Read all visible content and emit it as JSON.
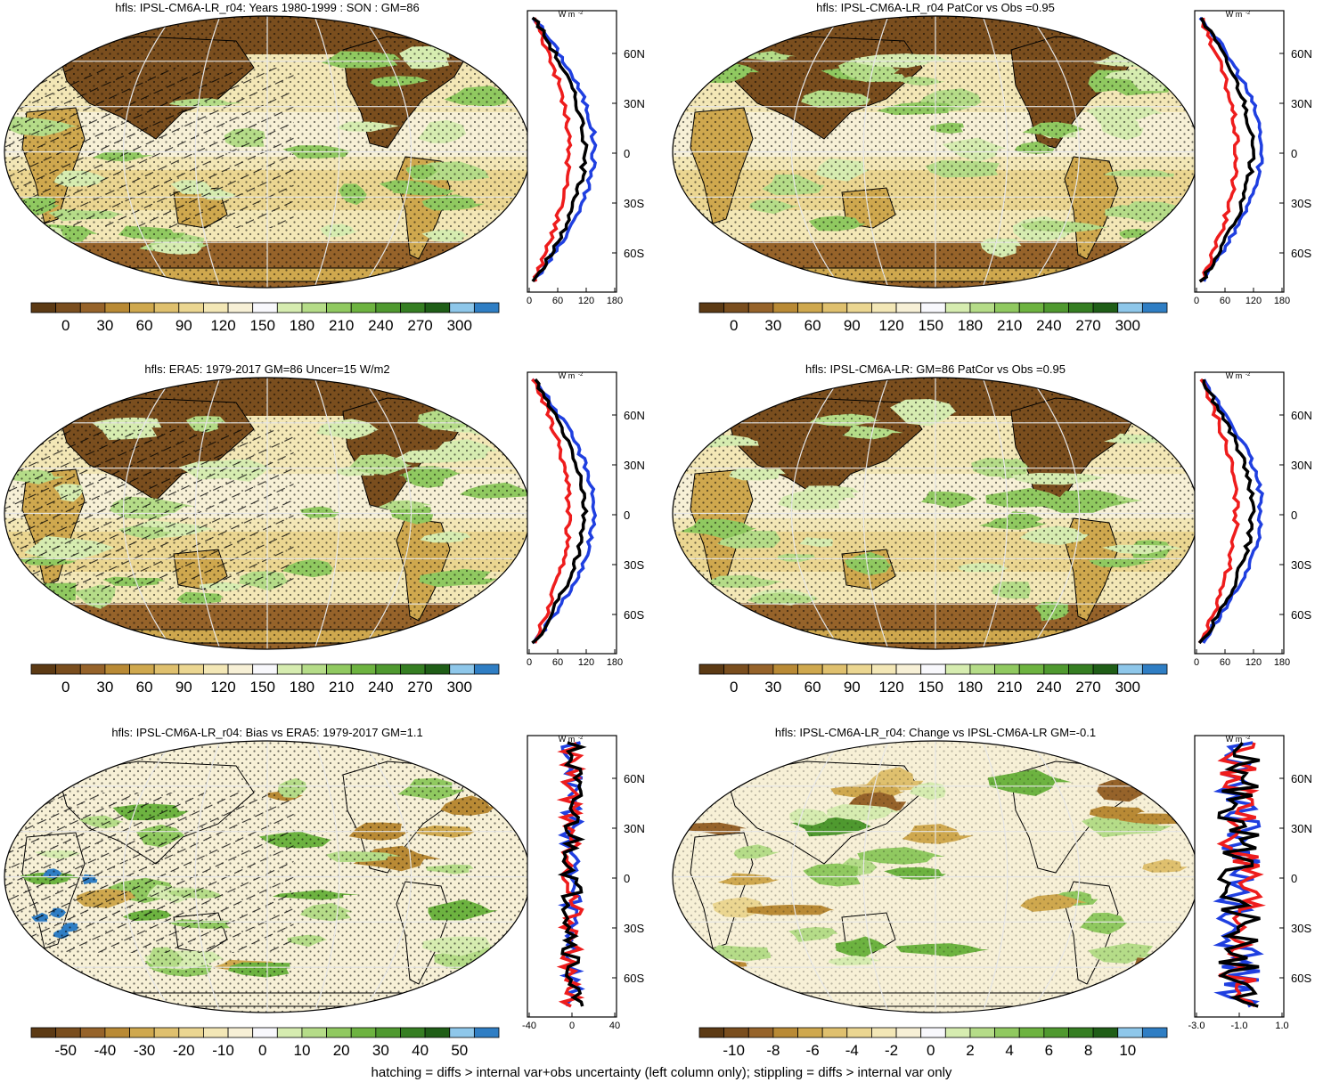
{
  "colors": {
    "land_dry": "#7a4a1c",
    "palette_abs": [
      "#5c3a14",
      "#7a4e1e",
      "#96632a",
      "#b98a35",
      "#cfa84e",
      "#dfc06e",
      "#ebd691",
      "#f3e7b6",
      "#f7f0d6",
      "#f8f8fc",
      "#d6ecb0",
      "#b5dc88",
      "#90c960",
      "#6db340",
      "#4f992f",
      "#357e22",
      "#1f5e17",
      "#8ec7ea",
      "#2f7ec4"
    ],
    "palette_diff": [
      "#5c3a14",
      "#7a4e1e",
      "#96632a",
      "#b98a35",
      "#cfa84e",
      "#dfc06e",
      "#ebd691",
      "#f3e7b6",
      "#f7f0d6",
      "#f8f8fc",
      "#d6ecb0",
      "#b5dc88",
      "#90c960",
      "#6db340",
      "#4f992f",
      "#357e22",
      "#1f5e17",
      "#8ec7ea",
      "#2f7ec4"
    ],
    "line_model": "#1f3fe0",
    "line_obs": "#ee1c1c",
    "line_mean": "#000000"
  },
  "panels": [
    {
      "title": "hfls: IPSL-CM6A-LR_r04: Years 1980-1999 : SON : GM=86",
      "colorbar_labels": [
        "0",
        "30",
        "60",
        "90",
        "120",
        "150",
        "180",
        "210",
        "240",
        "270",
        "300"
      ],
      "profile_unit": "W m",
      "profile_unit_sup": "-2",
      "profile_xticks": [
        "0",
        "60",
        "120",
        "180"
      ],
      "profile_yticks": [
        "60N",
        "30N",
        "0",
        "30S",
        "60S"
      ],
      "kind": "abs",
      "hatch": true
    },
    {
      "title": "hfls: IPSL-CM6A-LR_r04 PatCor vs Obs =0.95",
      "colorbar_labels": [
        "0",
        "30",
        "60",
        "90",
        "120",
        "150",
        "180",
        "210",
        "240",
        "270",
        "300"
      ],
      "profile_unit": "W m",
      "profile_unit_sup": "-2",
      "profile_xticks": [
        "0",
        "60",
        "120",
        "180"
      ],
      "profile_yticks": [
        "60N",
        "30N",
        "0",
        "30S",
        "60S"
      ],
      "kind": "abs",
      "hatch": false
    },
    {
      "title": "hfls: ERA5: 1979-2017 GM=86 Uncer=15 W/m2",
      "colorbar_labels": [
        "0",
        "30",
        "60",
        "90",
        "120",
        "150",
        "180",
        "210",
        "240",
        "270",
        "300"
      ],
      "profile_unit": "W m",
      "profile_unit_sup": "-2",
      "profile_xticks": [
        "0",
        "60",
        "120",
        "180"
      ],
      "profile_yticks": [
        "60N",
        "30N",
        "0",
        "30S",
        "60S"
      ],
      "kind": "abs",
      "hatch": true
    },
    {
      "title": "hfls: IPSL-CM6A-LR: GM=86 PatCor vs Obs =0.95",
      "colorbar_labels": [
        "0",
        "30",
        "60",
        "90",
        "120",
        "150",
        "180",
        "210",
        "240",
        "270",
        "300"
      ],
      "profile_unit": "W m",
      "profile_unit_sup": "-2",
      "profile_xticks": [
        "0",
        "60",
        "120",
        "180"
      ],
      "profile_yticks": [
        "60N",
        "30N",
        "0",
        "30S",
        "60S"
      ],
      "kind": "abs",
      "hatch": false
    },
    {
      "title": "hfls: IPSL-CM6A-LR_r04: Bias vs ERA5: 1979-2017  GM=1.1",
      "colorbar_labels": [
        "-50",
        "-40",
        "-30",
        "-20",
        "-10",
        "0",
        "10",
        "20",
        "30",
        "40",
        "50"
      ],
      "profile_unit": "W m",
      "profile_unit_sup": "-2",
      "profile_xticks": [
        "-40",
        "0",
        "40"
      ],
      "profile_yticks": [
        "60N",
        "30N",
        "0",
        "30S",
        "60S"
      ],
      "kind": "bias",
      "hatch": true
    },
    {
      "title": "hfls: IPSL-CM6A-LR_r04: Change vs IPSL-CM6A-LR GM=-0.1",
      "colorbar_labels": [
        "-10",
        "-8",
        "-6",
        "-4",
        "-2",
        "0",
        "2",
        "4",
        "6",
        "8",
        "10"
      ],
      "profile_unit": "W m",
      "profile_unit_sup": "-2",
      "profile_xticks": [
        "-3.0",
        "-1.0",
        "1.0"
      ],
      "profile_yticks": [
        "60N",
        "30N",
        "0",
        "30S",
        "60S"
      ],
      "kind": "change",
      "hatch": false
    }
  ],
  "footnote": "hatching = diffs > internal var+obs uncertainty (left column only); stippling = diffs > internal var only"
}
